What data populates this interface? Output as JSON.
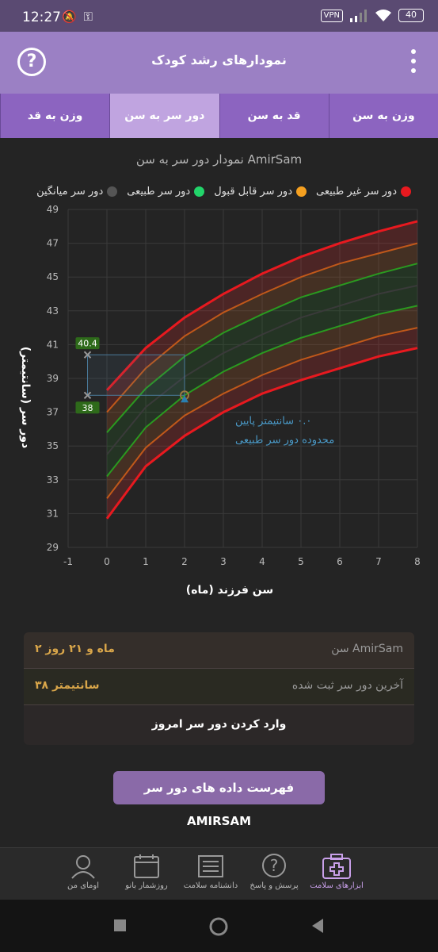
{
  "status_bar": {
    "time": "12:27",
    "vpn": "VPN",
    "battery": "40"
  },
  "app_bar": {
    "title": "نمودارهای رشد کودک",
    "help_icon": "help-circle-icon",
    "menu_icon": "more-vert-icon"
  },
  "tabs": [
    {
      "label": "وزن به سن"
    },
    {
      "label": "قد به سن"
    },
    {
      "label": "دور سر به سن"
    },
    {
      "label": "وزن به قد"
    }
  ],
  "active_tab": 2,
  "chart_data": {
    "type": "line",
    "title": "نمودار دور سر به سن AmirSam",
    "xlabel": "سن فرزند (ماه)",
    "ylabel": "دور سر (سانتیمتر)",
    "xlim": [
      -1,
      8
    ],
    "ylim": [
      29,
      49
    ],
    "x_ticks": [
      "-1",
      "0",
      "1",
      "2",
      "3",
      "4",
      "5",
      "6",
      "7",
      "8"
    ],
    "y_ticks": [
      "29",
      "31",
      "33",
      "35",
      "37",
      "39",
      "41",
      "43",
      "45",
      "47",
      "49"
    ],
    "legend": [
      {
        "name": "دور سر غیر طبیعی",
        "color": "#e8191f"
      },
      {
        "name": "دور سر قابل قبول",
        "color": "#f5a020"
      },
      {
        "name": "دور سر طبیعی",
        "color": "#22d46a"
      },
      {
        "name": "دور سر میانگین",
        "color": "#555555"
      }
    ],
    "x": [
      0,
      1,
      2,
      3,
      4,
      5,
      6,
      7,
      8
    ],
    "series": [
      {
        "values": [
          30.7,
          33.8,
          35.6,
          37.0,
          38.1,
          38.9,
          39.6,
          40.3,
          40.8
        ],
        "color": "#e8191f"
      },
      {
        "values": [
          31.9,
          34.9,
          36.8,
          38.1,
          39.2,
          40.1,
          40.8,
          41.5,
          42.0
        ],
        "color": "#c0581a"
      },
      {
        "values": [
          33.2,
          36.1,
          38.0,
          39.4,
          40.5,
          41.4,
          42.1,
          42.8,
          43.3
        ],
        "color": "#2a9a20"
      },
      {
        "values": [
          34.5,
          37.3,
          39.1,
          40.5,
          41.6,
          42.6,
          43.3,
          44.0,
          44.5
        ],
        "color": "#3a3a3a"
      },
      {
        "values": [
          35.8,
          38.4,
          40.3,
          41.7,
          42.8,
          43.8,
          44.5,
          45.2,
          45.8
        ],
        "color": "#2a9a20"
      },
      {
        "values": [
          37.0,
          39.6,
          41.5,
          42.9,
          44.0,
          45.0,
          45.8,
          46.4,
          47.0
        ],
        "color": "#c0581a"
      },
      {
        "values": [
          38.3,
          40.8,
          42.6,
          44.0,
          45.2,
          46.2,
          47.0,
          47.7,
          48.3
        ],
        "color": "#e8191f"
      }
    ],
    "measurement": {
      "x": 2,
      "y": 38
    },
    "markers": [
      {
        "x": -0.5,
        "y": 40.4,
        "label": "40.4"
      },
      {
        "x": -0.5,
        "y": 38,
        "label": "38"
      }
    ],
    "annotation": [
      "۰.۰ سانتیمتر پایین",
      "محدوده دور سر طبیعی"
    ]
  },
  "info": {
    "age_label": "سن AmirSam",
    "age_value": "۲ ماه و ۲۱ روز",
    "last_label": "آخرین دور سر ثبت شده",
    "last_value": "۳۸ سانتیمتر",
    "enter_button": "وارد کردن دور سر امروز"
  },
  "list_button": "فهرست داده های دور سر AMIRSAM",
  "bottom_nav": [
    {
      "label": "ابزارهای سلامت",
      "icon": "medical-kit-icon"
    },
    {
      "label": "پرسش و پاسخ",
      "icon": "question-bubble-icon"
    },
    {
      "label": "دانشنامه سلامت",
      "icon": "newspaper-icon"
    },
    {
      "label": "روزشمار بانو",
      "icon": "calendar-icon"
    },
    {
      "label": "اومای من",
      "icon": "user-avatar-icon"
    }
  ]
}
